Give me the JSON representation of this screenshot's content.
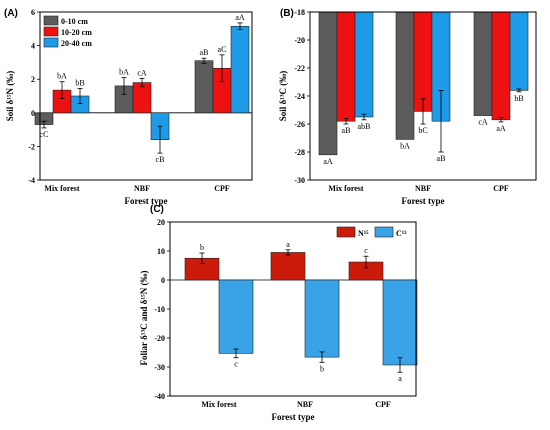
{
  "chart_data": [
    {
      "panel": "(A)",
      "type": "bar",
      "categories": [
        "Mix forest",
        "NBF",
        "CPF"
      ],
      "xlabel": "Forest type",
      "ylabel": "Soil δ¹⁵N (‰)",
      "ylim": [
        -4,
        6
      ],
      "yticks": [
        "-4",
        "-2",
        "0",
        "2",
        "4",
        "6"
      ],
      "legend_position": "top-left",
      "series": [
        {
          "name": "0-10 cm",
          "color": "#5b5b5b",
          "values": [
            -0.7,
            1.6,
            3.1
          ],
          "errors": [
            0.2,
            0.5,
            0.15
          ],
          "labels": [
            "cC",
            "bA",
            "aB"
          ]
        },
        {
          "name": "10-20 cm",
          "color": "#ee1111",
          "values": [
            1.35,
            1.8,
            2.65
          ],
          "errors": [
            0.5,
            0.25,
            0.8
          ],
          "labels": [
            "bA",
            "cA",
            "aC"
          ]
        },
        {
          "name": "20-40 cm",
          "color": "#1e9be8",
          "values": [
            1.0,
            -1.6,
            5.15
          ],
          "errors": [
            0.45,
            0.8,
            0.2
          ],
          "labels": [
            "bB",
            "cB",
            "aA"
          ]
        }
      ]
    },
    {
      "panel": "(B)",
      "type": "bar",
      "categories": [
        "Mix forest",
        "NBF",
        "CPF"
      ],
      "xlabel": "Forest type",
      "ylabel": "Soil δ¹³C (‰)",
      "ylim": [
        -30,
        -18
      ],
      "yticks": [
        "-30",
        "-28",
        "-26",
        "-24",
        "-22",
        "-20",
        "-18"
      ],
      "series": [
        {
          "name": "0-10 cm",
          "color": "#5b5b5b",
          "values": [
            -28.2,
            -27.1,
            -25.4
          ],
          "errors": [
            0.0,
            0.0,
            0.0
          ],
          "labels": [
            "aA",
            "bA",
            "cA"
          ]
        },
        {
          "name": "10-20 cm",
          "color": "#ee1111",
          "values": [
            -25.8,
            -25.1,
            -25.7
          ],
          "errors": [
            0.2,
            0.9,
            0.15
          ],
          "labels": [
            "aB",
            "bC",
            "aA"
          ]
        },
        {
          "name": "20-40 cm",
          "color": "#1e9be8",
          "values": [
            -25.5,
            -25.8,
            -23.6
          ],
          "errors": [
            0.2,
            2.2,
            0.1
          ],
          "labels": [
            "abB",
            "aB",
            "bB"
          ]
        }
      ]
    },
    {
      "panel": "(C)",
      "type": "bar",
      "categories": [
        "Mix forest",
        "NBF",
        "CPF"
      ],
      "xlabel": "Forest type",
      "ylabel": "Foliar δ¹³C and δ¹⁵N (‰)",
      "ylim": [
        -40,
        20
      ],
      "yticks": [
        "-40",
        "-30",
        "-20",
        "-10",
        "0",
        "10",
        "20"
      ],
      "legend_position": "top-right",
      "series": [
        {
          "name": "N¹⁵",
          "color": "#cc1b0b",
          "values": [
            7.5,
            9.5,
            6.2
          ],
          "errors": [
            1.8,
            0.9,
            2.0
          ],
          "labels": [
            "b",
            "a",
            "c"
          ]
        },
        {
          "name": "C¹³",
          "color": "#3aa3e8",
          "values": [
            -25.3,
            -26.6,
            -29.3
          ],
          "errors": [
            1.5,
            1.8,
            2.5
          ],
          "labels": [
            "c",
            "b",
            "a"
          ]
        }
      ]
    }
  ]
}
